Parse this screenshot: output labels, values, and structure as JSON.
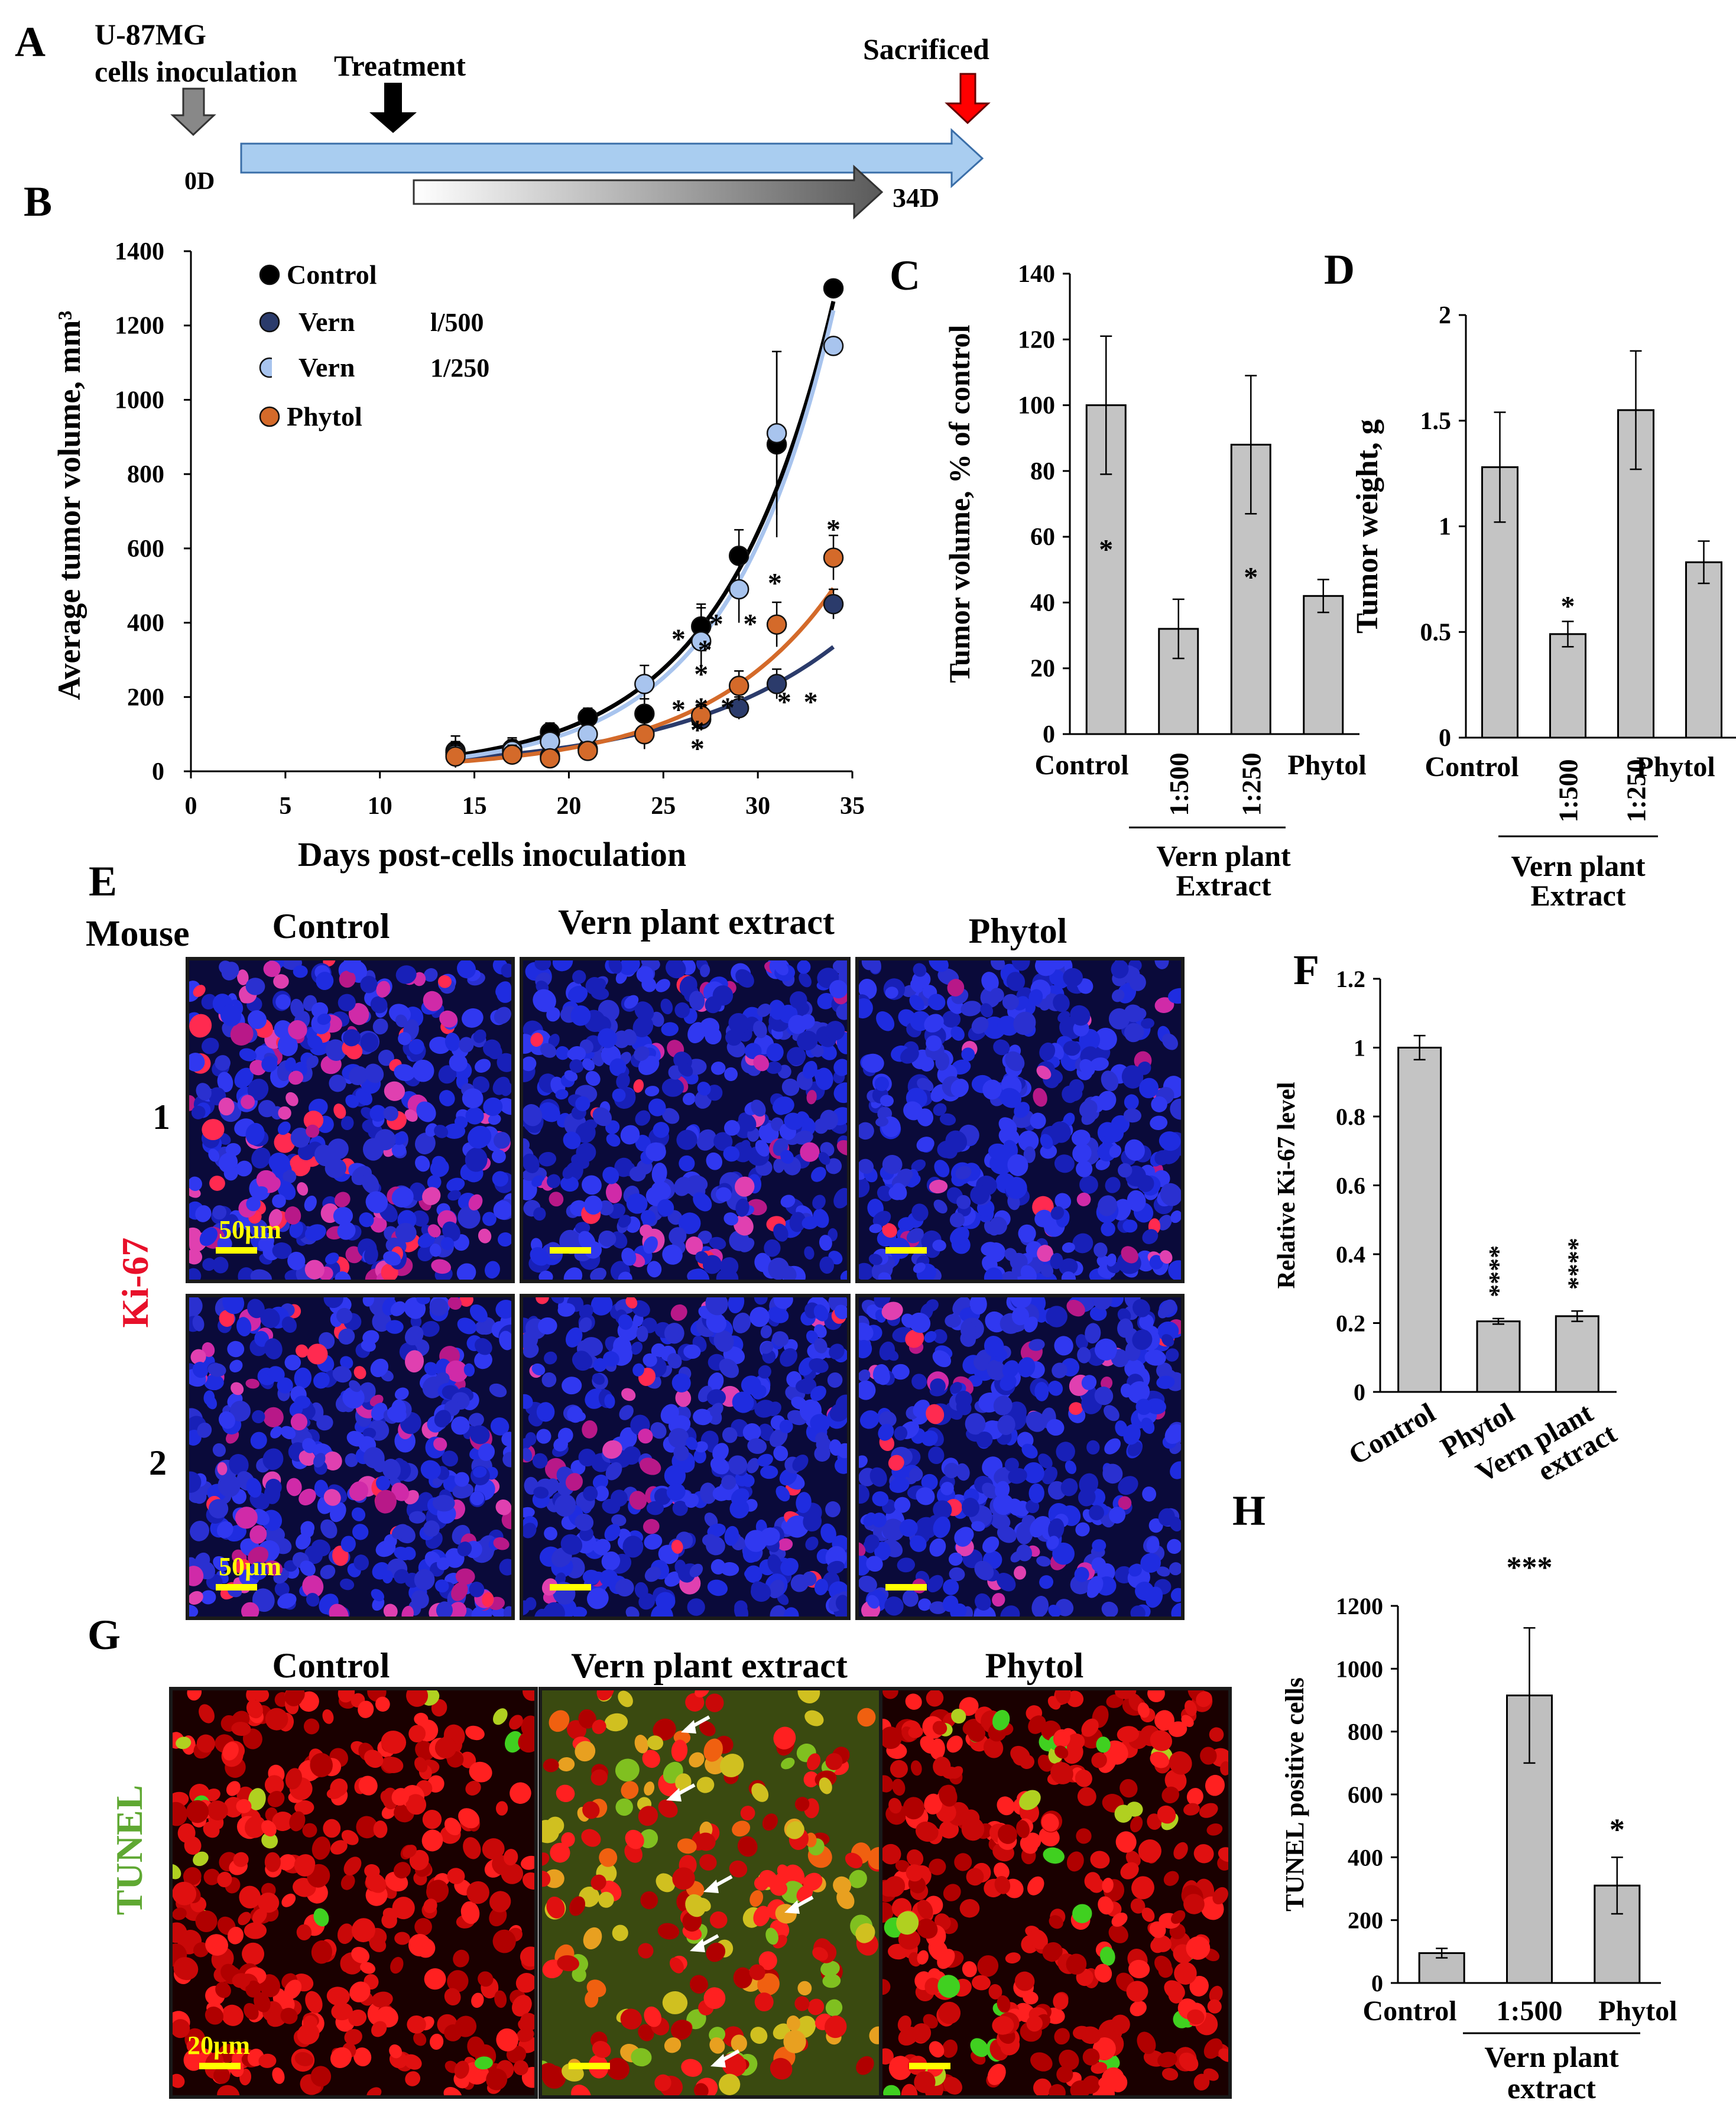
{
  "panels": {
    "A": {
      "letter": "A",
      "inoculation_label_1": "U-87MG",
      "inoculation_label_2": "cells inoculation",
      "treatment_label": "Treatment",
      "sacrificed_label": "Sacrificed",
      "day0": "0D",
      "day_end": "34D",
      "colors": {
        "timeline": "#a9cdf0",
        "inoculation_arrow": "#888888",
        "sacrificed_arrow": "#ff0000"
      }
    },
    "B": {
      "letter": "B"
    },
    "C": {
      "letter": "C"
    },
    "D": {
      "letter": "D"
    },
    "E": {
      "letter": "E",
      "mouse_label": "Mouse",
      "marker_label": "Ki-67",
      "columns": [
        "Control",
        "Vern plant extract",
        "Phytol"
      ],
      "rows": [
        "1",
        "2"
      ],
      "scalebar_label": "50µm",
      "colors": {
        "nuclei": "#2020d8",
        "marker": "#ff2050",
        "scale_bar": "#ffff00"
      }
    },
    "F": {
      "letter": "F"
    },
    "G": {
      "letter": "G",
      "marker_label": "TUNEL",
      "columns": [
        "Control",
        "Vern plant extract",
        "Phytol"
      ],
      "scalebar_label": "20µm",
      "colors": {
        "nuclei": "#e01010",
        "marker": "#40d020",
        "scale_bar": "#ffff00"
      }
    },
    "H": {
      "letter": "H"
    }
  },
  "chart_data": [
    {
      "panel": "B",
      "type": "scatter",
      "xlabel": "Days post-cells  inoculation",
      "ylabel": "Average tumor volume, mm³",
      "xlim": [
        0,
        35
      ],
      "ylim": [
        0,
        1400
      ],
      "xticks": [
        0,
        5,
        10,
        15,
        20,
        25,
        30,
        35
      ],
      "yticks": [
        0,
        200,
        400,
        600,
        800,
        1000,
        1200,
        1400
      ],
      "grid": false,
      "legend_position": "top-left",
      "series": [
        {
          "name": "Control",
          "legend_label": "Control",
          "legend_dose": "",
          "color": "#000000",
          "x": [
            14,
            17,
            19,
            21,
            24,
            27,
            29,
            31,
            34
          ],
          "y": [
            55,
            60,
            105,
            145,
            155,
            390,
            580,
            880,
            1300
          ],
          "err": [
            40,
            30,
            25,
            25,
            40,
            60,
            70,
            250,
            0
          ]
        },
        {
          "name": "Vern 1/500",
          "legend_label": "Vern",
          "legend_dose": "l/500",
          "color": "#2b3b6b",
          "x": [
            14,
            17,
            19,
            21,
            24,
            27,
            29,
            31,
            34
          ],
          "y": [
            50,
            50,
            40,
            60,
            100,
            140,
            170,
            235,
            450
          ],
          "err": [
            30,
            30,
            20,
            20,
            40,
            30,
            30,
            40,
            40
          ]
        },
        {
          "name": "Vern 1/250",
          "legend_label": "Vern",
          "legend_dose": "1/250",
          "color": "#a8c4ee",
          "x": [
            14,
            17,
            19,
            21,
            24,
            27,
            29,
            31,
            34
          ],
          "y": [
            45,
            55,
            80,
            100,
            235,
            350,
            490,
            910,
            1145
          ],
          "err": [
            30,
            30,
            25,
            25,
            50,
            90,
            90,
            220,
            0
          ]
        },
        {
          "name": "Phytol",
          "legend_label": "Phytol",
          "legend_dose": "",
          "color": "#d46a2a",
          "x": [
            14,
            17,
            19,
            21,
            24,
            27,
            29,
            31,
            34
          ],
          "y": [
            40,
            45,
            35,
            55,
            100,
            150,
            230,
            395,
            575
          ],
          "err": [
            30,
            25,
            20,
            20,
            40,
            30,
            40,
            60,
            60
          ]
        }
      ],
      "annotations": [
        "*",
        "*",
        "*",
        "*",
        "*",
        "*",
        "*",
        "*",
        "*",
        "*",
        "*",
        "*",
        "*",
        "*"
      ]
    },
    {
      "panel": "C",
      "type": "bar",
      "ylabel": "Tumor volume, % of control",
      "ylim": [
        0,
        140
      ],
      "yticks": [
        0,
        20,
        40,
        60,
        80,
        100,
        120,
        140
      ],
      "categories": [
        "Control",
        "1:500",
        "1:250",
        "Phytol"
      ],
      "values": [
        100,
        32,
        88,
        42
      ],
      "errors": [
        21,
        9,
        21,
        5
      ],
      "significance": [
        "*",
        "",
        "*",
        ""
      ],
      "group_label_1": "Vern plant",
      "group_label_2": "Extract",
      "bar_color": "#c4c4c4"
    },
    {
      "panel": "D",
      "type": "bar",
      "ylabel": "Tumor weight, g",
      "ylim": [
        0,
        2
      ],
      "yticks": [
        "0",
        "0.5",
        "1",
        "1.5",
        "2"
      ],
      "ytick_values": [
        0,
        0.5,
        1,
        1.5,
        2
      ],
      "categories": [
        "Control",
        "1:500",
        "1:250",
        "Phytol"
      ],
      "values": [
        1.28,
        0.49,
        1.55,
        0.83
      ],
      "errors": [
        0.26,
        0.06,
        0.28,
        0.1
      ],
      "significance": [
        "",
        "*",
        "",
        ""
      ],
      "group_label_1": "Vern plant",
      "group_label_2": "Extract",
      "bar_color": "#c4c4c4"
    },
    {
      "panel": "F",
      "type": "bar",
      "ylabel": "Relative Ki-67  level",
      "ylim": [
        0,
        1.2
      ],
      "yticks": [
        "0",
        "0.2",
        "0.4",
        "0.6",
        "0.8",
        "1",
        "1.2"
      ],
      "ytick_values": [
        0,
        0.2,
        0.4,
        0.6,
        0.8,
        1,
        1.2
      ],
      "categories": [
        "Control",
        "Phytol",
        "Vern plant extract"
      ],
      "category_lines": [
        [
          "Control"
        ],
        [
          "Phytol"
        ],
        [
          "Vern plant",
          "extract"
        ]
      ],
      "values": [
        1.0,
        0.205,
        0.22
      ],
      "errors": [
        0.035,
        0.008,
        0.015
      ],
      "significance": [
        "",
        "****",
        "****"
      ],
      "bar_color": "#c4c4c4"
    },
    {
      "panel": "H",
      "type": "bar",
      "ylabel": "TUNEL positive cells",
      "ylim": [
        0,
        1200
      ],
      "yticks": [
        0,
        200,
        400,
        600,
        800,
        1000,
        1200
      ],
      "categories": [
        "Control",
        "1:500",
        "Phytol"
      ],
      "values": [
        95,
        915,
        310
      ],
      "errors": [
        15,
        215,
        90
      ],
      "significance": [
        "",
        "***",
        "*"
      ],
      "group_label_1": "Vern plant",
      "group_label_2": "extract",
      "bar_color": "#bfbfbf"
    }
  ]
}
